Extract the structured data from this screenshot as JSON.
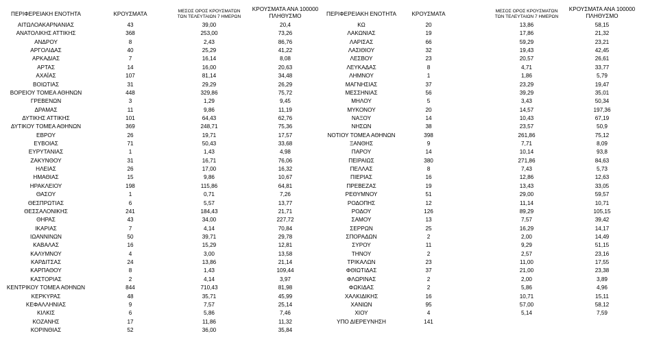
{
  "tables": [
    {
      "header": [
        [
          "ΠΕΡΙΦΕΡΕΙΑΚΗ ΕΝΟΤΗΤΑ"
        ],
        [
          "ΚΡΟΥΣΜΑΤΑ"
        ],
        [
          "ΜΕΣΟΣ ΟΡΟΣ ΚΡΟΥΣΜΑΤΩΝ",
          "ΤΩΝ ΤΕΛΕΥΤΑΙΩΝ 7 ΗΜΕΡΩΝ"
        ],
        [
          "ΚΡΟΥΣΜΑΤΑ ΑΝΑ 100000",
          "ΠΛΗΘΥΣΜΟ"
        ]
      ],
      "rows": [
        [
          "ΑΙΤΩΛΟΑΚΑΡΝΑΝΙΑΣ",
          "43",
          "39,00",
          "20,4"
        ],
        [
          "ΑΝΑΤΟΛΙΚΗΣ ΑΤΤΙΚΗΣ",
          "368",
          "253,00",
          "73,26"
        ],
        [
          "ΑΝΔΡΟΥ",
          "8",
          "2,43",
          "86,76"
        ],
        [
          "ΑΡΓΟΛΙΔΑΣ",
          "40",
          "25,29",
          "41,22"
        ],
        [
          "ΑΡΚΑΔΙΑΣ",
          "7",
          "16,14",
          "8,08"
        ],
        [
          "ΑΡΤΑΣ",
          "14",
          "16,00",
          "20,63"
        ],
        [
          "ΑΧΑΪΑΣ",
          "107",
          "81,14",
          "34,48"
        ],
        [
          "ΒΟΙΩΤΙΑΣ",
          "31",
          "29,29",
          "26,29"
        ],
        [
          "ΒΟΡΕΙΟΥ ΤΟΜΕΑ ΑΘΗΝΩΝ",
          "448",
          "329,86",
          "75,72"
        ],
        [
          "ΓΡΕΒΕΝΩΝ",
          "3",
          "1,29",
          "9,45"
        ],
        [
          "ΔΡΑΜΑΣ",
          "11",
          "9,86",
          "11,19"
        ],
        [
          "ΔΥΤΙΚΗΣ ΑΤΤΙΚΗΣ",
          "101",
          "64,43",
          "62,76"
        ],
        [
          "ΔΥΤΙΚΟΥ ΤΟΜΕΑ ΑΘΗΝΩΝ",
          "369",
          "248,71",
          "75,36"
        ],
        [
          "ΕΒΡΟΥ",
          "26",
          "19,71",
          "17,57"
        ],
        [
          "ΕΥΒΟΙΑΣ",
          "71",
          "50,43",
          "33,68"
        ],
        [
          "ΕΥΡΥΤΑΝΙΑΣ",
          "1",
          "1,43",
          "4,98"
        ],
        [
          "ΖΑΚΥΝΘΟΥ",
          "31",
          "16,71",
          "76,06"
        ],
        [
          "ΗΛΕΙΑΣ",
          "26",
          "17,00",
          "16,32"
        ],
        [
          "ΗΜΑΘΙΑΣ",
          "15",
          "9,86",
          "10,67"
        ],
        [
          "ΗΡΑΚΛΕΙΟΥ",
          "198",
          "115,86",
          "64,81"
        ],
        [
          "ΘΑΣΟΥ",
          "1",
          "0,71",
          "7,26"
        ],
        [
          "ΘΕΣΠΡΩΤΙΑΣ",
          "6",
          "5,57",
          "13,77"
        ],
        [
          "ΘΕΣΣΑΛΟΝΙΚΗΣ",
          "241",
          "184,43",
          "21,71"
        ],
        [
          "ΘΗΡΑΣ",
          "43",
          "34,00",
          "227,72"
        ],
        [
          "ΙΚΑΡΙΑΣ",
          "7",
          "4,14",
          "70,84"
        ],
        [
          "ΙΩΑΝΝΙΝΩΝ",
          "50",
          "39,71",
          "29,78"
        ],
        [
          "ΚΑΒΑΛΑΣ",
          "16",
          "15,29",
          "12,81"
        ],
        [
          "ΚΑΛΥΜΝΟΥ",
          "4",
          "3,00",
          "13,58"
        ],
        [
          "ΚΑΡΔΙΤΣΑΣ",
          "24",
          "13,86",
          "21,14"
        ],
        [
          "ΚΑΡΠΑΘΟΥ",
          "8",
          "1,43",
          "109,44"
        ],
        [
          "ΚΑΣΤΟΡΙΑΣ",
          "2",
          "4,14",
          "3,97"
        ],
        [
          "ΚΕΝΤΡΙΚΟΥ ΤΟΜΕΑ ΑΘΗΝΩΝ",
          "844",
          "710,43",
          "81,98"
        ],
        [
          "ΚΕΡΚΥΡΑΣ",
          "48",
          "35,71",
          "45,99"
        ],
        [
          "ΚΕΦΑΛΛΗΝΙΑΣ",
          "9",
          "7,57",
          "25,14"
        ],
        [
          "ΚΙΛΚΙΣ",
          "6",
          "5,86",
          "7,46"
        ],
        [
          "ΚΟΖΑΝΗΣ",
          "17",
          "11,86",
          "11,32"
        ],
        [
          "ΚΟΡΙΝΘΙΑΣ",
          "52",
          "36,00",
          "35,84"
        ]
      ]
    },
    {
      "header": [
        [
          "ΠΕΡΙΦΕΡΕΙΑΚΗ ΕΝΟΤΗΤΑ"
        ],
        [
          "ΚΡΟΥΣΜΑΤΑ"
        ],
        [
          "ΜΕΣΟΣ ΟΡΟΣ ΚΡΟΥΣΜΑΤΩΝ",
          "ΤΩΝ ΤΕΛΕΥΤΑΙΩΝ 7 ΗΜΕΡΩΝ"
        ],
        [
          "ΚΡΟΥΣΜΑΤΑ ΑΝΑ 100000",
          "ΠΛΗΘΥΣΜΟ"
        ]
      ],
      "rows": [
        [
          "ΚΩ",
          "20",
          "13,86",
          "58,15"
        ],
        [
          "ΛΑΚΩΝΙΑΣ",
          "19",
          "17,86",
          "21,32"
        ],
        [
          "ΛΑΡΙΣΑΣ",
          "66",
          "59,29",
          "23,21"
        ],
        [
          "ΛΑΣΙΘΙΟΥ",
          "32",
          "19,43",
          "42,45"
        ],
        [
          "ΛΕΣΒΟΥ",
          "23",
          "20,57",
          "26,61"
        ],
        [
          "ΛΕΥΚΑΔΑΣ",
          "8",
          "4,71",
          "33,77"
        ],
        [
          "ΛΗΜΝΟΥ",
          "1",
          "1,86",
          "5,79"
        ],
        [
          "ΜΑΓΝΗΣΙΑΣ",
          "37",
          "23,29",
          "19,47"
        ],
        [
          "ΜΕΣΣΗΝΙΑΣ",
          "56",
          "39,29",
          "35,01"
        ],
        [
          "ΜΗΛΟΥ",
          "5",
          "3,43",
          "50,34"
        ],
        [
          "ΜΥΚΟΝΟΥ",
          "20",
          "14,57",
          "197,36"
        ],
        [
          "ΝΑΞΟΥ",
          "14",
          "10,43",
          "67,19"
        ],
        [
          "ΝΗΣΩΝ",
          "38",
          "23,57",
          "50,9"
        ],
        [
          "ΝΟΤΙΟΥ ΤΟΜΕΑ ΑΘΗΝΩΝ",
          "398",
          "261,86",
          "75,12"
        ],
        [
          "ΞΑΝΘΗΣ",
          "9",
          "7,71",
          "8,09"
        ],
        [
          "ΠΑΡΟΥ",
          "14",
          "10,14",
          "93,8"
        ],
        [
          "ΠΕΙΡΑΙΩΣ",
          "380",
          "271,86",
          "84,63"
        ],
        [
          "ΠΕΛΛΑΣ",
          "8",
          "7,43",
          "5,73"
        ],
        [
          "ΠΙΕΡΙΑΣ",
          "16",
          "12,86",
          "12,63"
        ],
        [
          "ΠΡΕΒΕΖΑΣ",
          "19",
          "13,43",
          "33,05"
        ],
        [
          "ΡΕΘΥΜΝΟΥ",
          "51",
          "29,00",
          "59,57"
        ],
        [
          "ΡΟΔΟΠΗΣ",
          "12",
          "11,14",
          "10,71"
        ],
        [
          "ΡΟΔΟΥ",
          "126",
          "89,29",
          "105,15"
        ],
        [
          "ΣΑΜΟΥ",
          "13",
          "7,57",
          "39,42"
        ],
        [
          "ΣΕΡΡΩΝ",
          "25",
          "16,29",
          "14,17"
        ],
        [
          "ΣΠΟΡΑΔΩΝ",
          "2",
          "2,00",
          "14,49"
        ],
        [
          "ΣΥΡΟΥ",
          "11",
          "9,29",
          "51,15"
        ],
        [
          "ΤΗΝΟΥ",
          "2",
          "2,57",
          "23,16"
        ],
        [
          "ΤΡΙΚΑΛΩΝ",
          "23",
          "11,00",
          "17,55"
        ],
        [
          "ΦΘΙΩΤΙΔΑΣ",
          "37",
          "21,00",
          "23,38"
        ],
        [
          "ΦΛΩΡΙΝΑΣ",
          "2",
          "2,00",
          "3,89"
        ],
        [
          "ΦΩΚΙΔΑΣ",
          "2",
          "5,86",
          "4,96"
        ],
        [
          "ΧΑΛΚΙΔΙΚΗΣ",
          "16",
          "10,71",
          "15,11"
        ],
        [
          "ΧΑΝΙΩΝ",
          "95",
          "57,00",
          "58,12"
        ],
        [
          "ΧΙΟΥ",
          "4",
          "5,14",
          "7,59"
        ],
        [
          "ΥΠΟ ΔΙΕΡΕΥΝΗΣΗ",
          "141"
        ]
      ]
    }
  ]
}
